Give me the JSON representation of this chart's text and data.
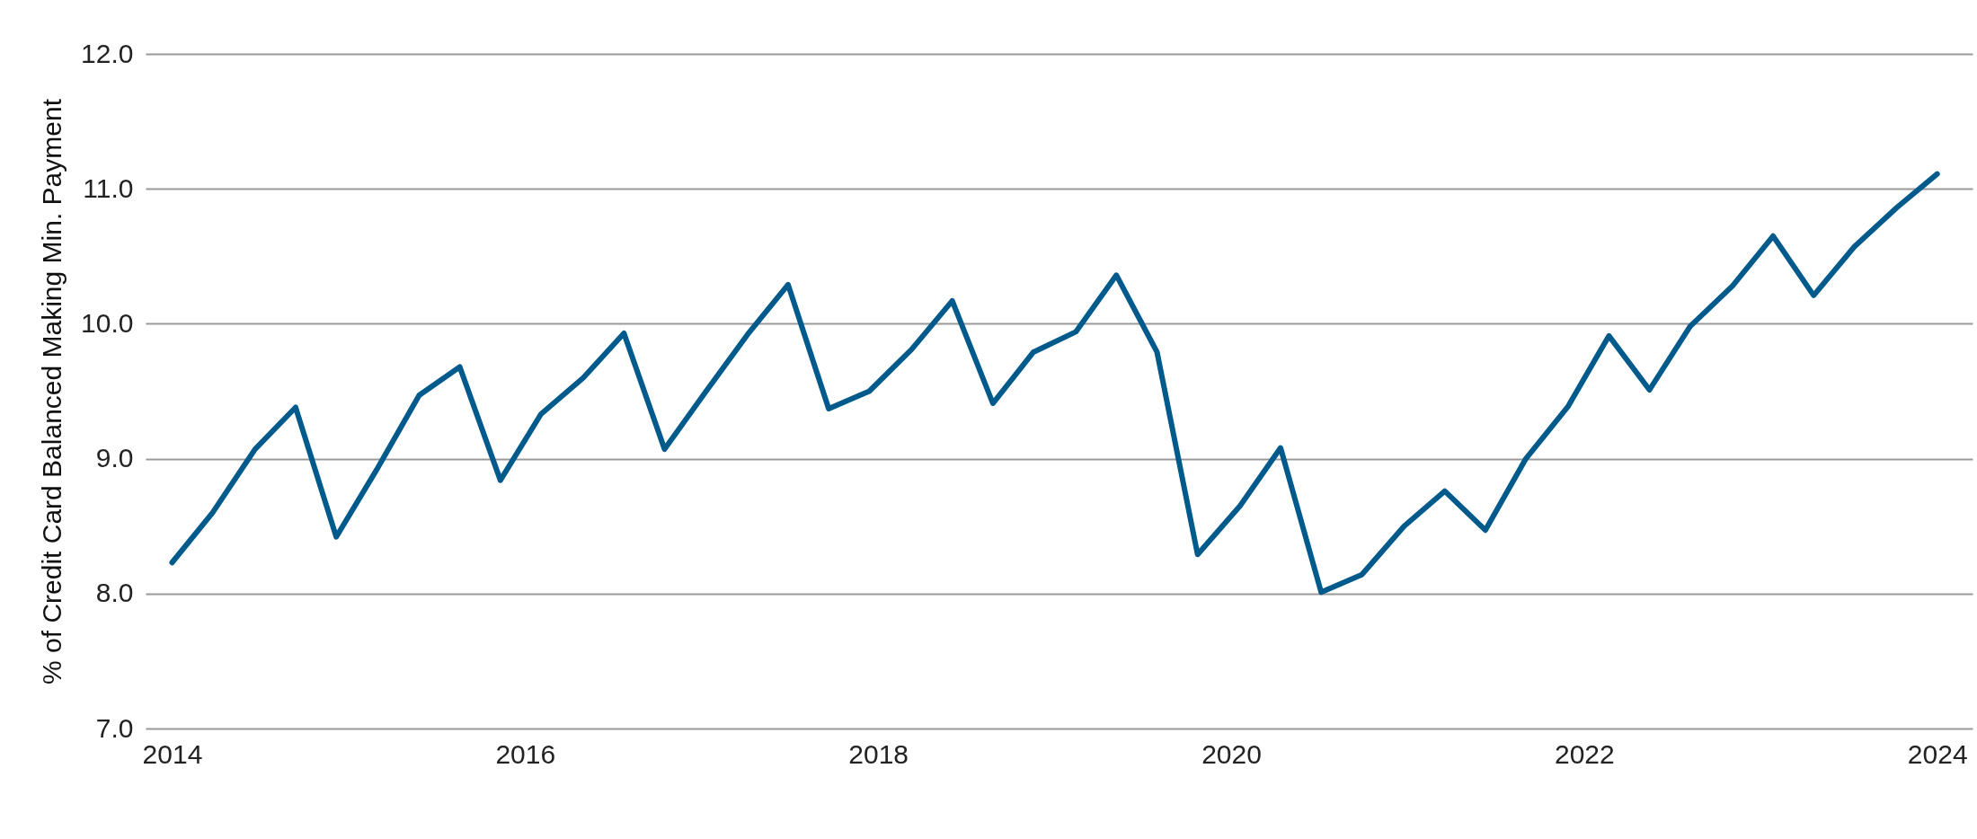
{
  "chart_data": {
    "type": "line",
    "ylabel": "% of Credit Card Balanced Making Min. Payment",
    "x": [
      2014,
      2014.23,
      2014.47,
      2014.7,
      2014.93,
      2015.16,
      2015.4,
      2015.63,
      2015.86,
      2016.09,
      2016.33,
      2016.56,
      2016.79,
      2017.02,
      2017.26,
      2017.49,
      2017.72,
      2017.95,
      2018.19,
      2018.42,
      2018.65,
      2018.88,
      2019.12,
      2019.35,
      2019.58,
      2019.81,
      2020.05,
      2020.28,
      2020.51,
      2020.74,
      2020.98,
      2021.21,
      2021.44,
      2021.67,
      2021.91,
      2022.14,
      2022.37,
      2022.6,
      2022.84,
      2023.07,
      2023.3,
      2023.53,
      2023.77,
      2024
    ],
    "series": [
      {
        "color": "#005a8c",
        "values": [
          8.23,
          8.6,
          9.07,
          9.38,
          8.42,
          8.92,
          9.47,
          9.68,
          8.84,
          9.33,
          9.6,
          9.93,
          9.07,
          9.49,
          9.92,
          10.29,
          9.37,
          9.5,
          9.81,
          10.17,
          9.41,
          9.79,
          9.94,
          10.36,
          9.79,
          8.29,
          8.65,
          9.08,
          8.01,
          8.14,
          8.5,
          8.76,
          8.47,
          9.0,
          9.39,
          9.91,
          9.51,
          9.98,
          10.28,
          10.65,
          10.21,
          10.57,
          10.86,
          11.11
        ]
      }
    ],
    "xlim": [
      2013.85,
      2024.2
    ],
    "xticks": [
      2014,
      2016,
      2018,
      2020,
      2022,
      2024
    ],
    "ylim": [
      7,
      12
    ],
    "yticks": [
      {
        "value": 7,
        "label": "7.0"
      },
      {
        "value": 8,
        "label": "8.0"
      },
      {
        "value": 9,
        "label": "9.0"
      },
      {
        "value": 10,
        "label": "10.0"
      },
      {
        "value": 11,
        "label": "11.0"
      },
      {
        "value": 12,
        "label": "12.0"
      }
    ],
    "grid": "y",
    "marker": "none",
    "line_style": "solid",
    "legend": false
  }
}
